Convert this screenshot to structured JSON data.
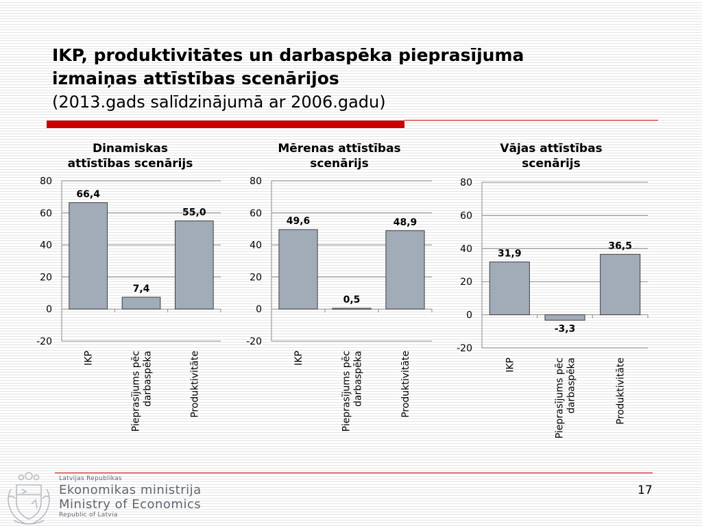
{
  "slide": {
    "title_line1": "IKP, produktivitātes un darbaspēka pieprasījuma",
    "title_line2": "izmaiņas attīstības scenārijos",
    "subtitle": "(2013.gads salīdzinājumā ar 2006.gadu)",
    "page_number": "17"
  },
  "colors": {
    "accent": "#cc0000",
    "bar_fill": "#a2acb8",
    "bar_stroke": "#3d3d3d",
    "gridline": "#8a8a8a",
    "footer_text": "#5e6670"
  },
  "footer": {
    "republic_lv": "Latvijas Republikas",
    "ministry_lv": "Ekonomikas ministrija",
    "ministry_en": "Ministry of Economics",
    "republic_en": "Republic of Latvia",
    "logo_icon": "coat-of-arms-icon"
  },
  "chart_data": [
    {
      "type": "bar",
      "title_lines": [
        "Dinamiskas",
        "attīstības scenārijs"
      ],
      "categories": [
        [
          "IKP"
        ],
        [
          "Pieprasījums pēc",
          "darbaspēka"
        ],
        [
          "Produktivitāte"
        ]
      ],
      "values": [
        66.4,
        7.4,
        55.0
      ],
      "value_labels": [
        "66,4",
        "7,4",
        "55,0"
      ],
      "ylim": [
        -20,
        80
      ],
      "yticks": [
        80,
        60,
        40,
        20,
        0,
        -20
      ],
      "ytick_labels": [
        "80",
        "60",
        "40",
        "20",
        "0",
        "-20"
      ],
      "grid": true,
      "legend": "none"
    },
    {
      "type": "bar",
      "title_lines": [
        "Mērenas attīstības",
        "scenārijs"
      ],
      "categories": [
        [
          "IKP"
        ],
        [
          "Pieprasījums pēc",
          "darbaspēka"
        ],
        [
          "Produktivitāte"
        ]
      ],
      "values": [
        49.6,
        0.5,
        48.9
      ],
      "value_labels": [
        "49,6",
        "0,5",
        "48,9"
      ],
      "ylim": [
        -20,
        80
      ],
      "yticks": [
        80,
        60,
        40,
        20,
        0,
        -20
      ],
      "ytick_labels": [
        "80",
        "60",
        "40",
        "20",
        "0",
        "-20"
      ],
      "grid": true,
      "legend": "none"
    },
    {
      "type": "bar",
      "title_lines": [
        "Vājas attīstības",
        "scenārijs"
      ],
      "categories": [
        [
          "IKP"
        ],
        [
          "Pieprasījums pēc",
          "darbaspēka"
        ],
        [
          "Produktivitāte"
        ]
      ],
      "values": [
        31.9,
        -3.3,
        36.5
      ],
      "value_labels": [
        "31,9",
        "-3,3",
        "36,5"
      ],
      "ylim": [
        -20,
        80
      ],
      "yticks": [
        80,
        60,
        40,
        20,
        0,
        -20
      ],
      "ytick_labels": [
        "80",
        "60",
        "40",
        "20",
        "0",
        "-20"
      ],
      "grid": true,
      "legend": "none"
    }
  ]
}
